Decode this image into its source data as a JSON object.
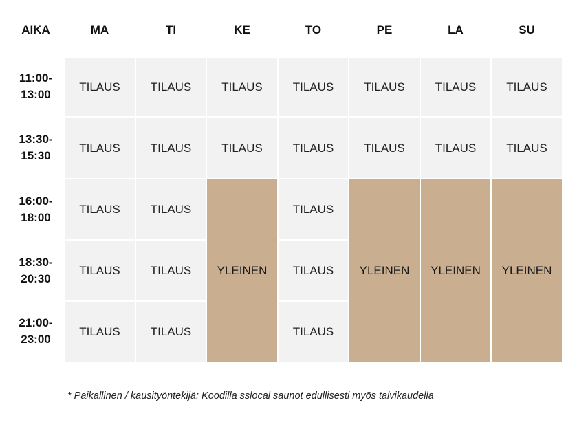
{
  "header": {
    "time_label": "AIKA",
    "days": [
      "MA",
      "TI",
      "KE",
      "TO",
      "PE",
      "LA",
      "SU"
    ]
  },
  "times": [
    {
      "start": "11:00-",
      "end": "13:00"
    },
    {
      "start": "13:30-",
      "end": "15:30"
    },
    {
      "start": "16:00-",
      "end": "18:00"
    },
    {
      "start": "18:30-",
      "end": "20:30"
    },
    {
      "start": "21:00-",
      "end": "23:00"
    }
  ],
  "labels": {
    "tilaus": "TILAUS",
    "yleinen": "YLEINEN"
  },
  "schedule": [
    [
      "TILAUS",
      "TILAUS",
      "TILAUS",
      "TILAUS",
      "TILAUS",
      "TILAUS",
      "TILAUS"
    ],
    [
      "TILAUS",
      "TILAUS",
      "TILAUS",
      "TILAUS",
      "TILAUS",
      "TILAUS",
      "TILAUS"
    ],
    [
      "TILAUS",
      "TILAUS",
      "YLEINEN",
      "TILAUS",
      "YLEINEN",
      "YLEINEN",
      "YLEINEN"
    ],
    [
      "TILAUS",
      "TILAUS",
      "YLEINEN",
      "TILAUS",
      "YLEINEN",
      "YLEINEN",
      "YLEINEN"
    ],
    [
      "TILAUS",
      "TILAUS",
      "YLEINEN",
      "TILAUS",
      "YLEINEN",
      "YLEINEN",
      "YLEINEN"
    ]
  ],
  "colors": {
    "tilaus_bg": "#f2f2f2",
    "yleinen_bg": "#c9ae90"
  },
  "footnote": "* Paikallinen / kausityöntekijä: Koodilla sslocal saunot edullisesti myös talvikaudella"
}
